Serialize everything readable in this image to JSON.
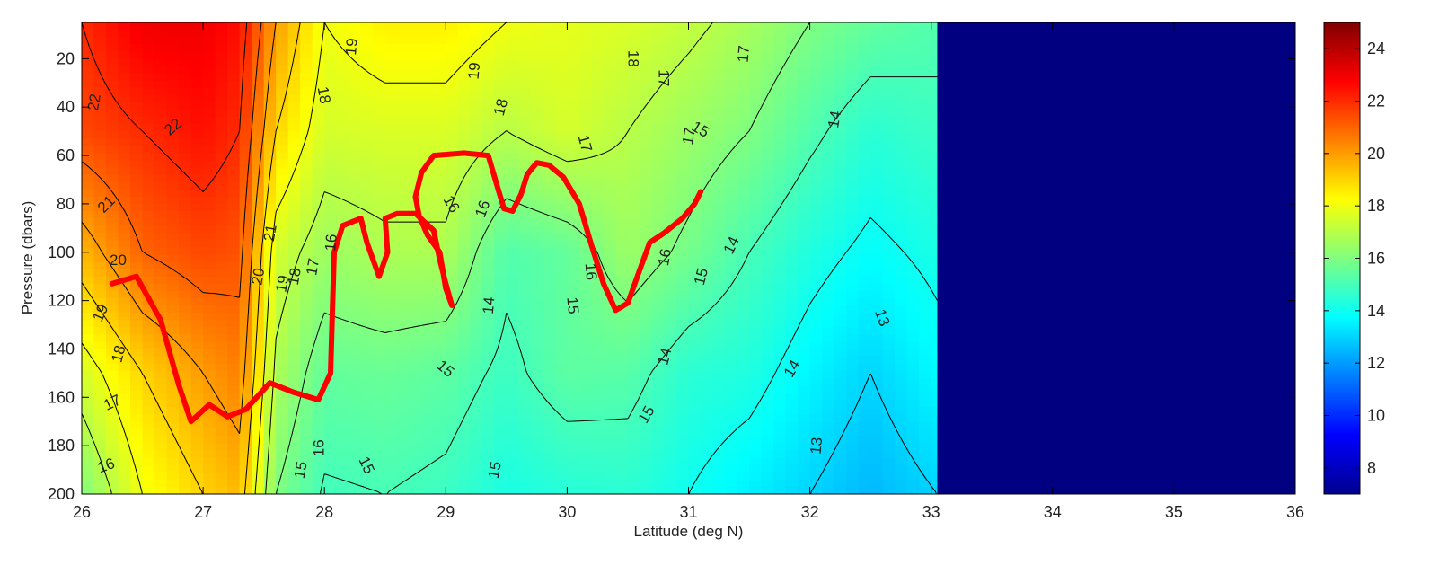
{
  "chart_data": {
    "type": "heatmap",
    "xlabel": "Latitude (deg N)",
    "ylabel": "Pressure (dbars)",
    "xlim": [
      26,
      36
    ],
    "ylim": [
      200,
      5
    ],
    "y_reversed": true,
    "xticks": [
      26,
      27,
      28,
      29,
      30,
      31,
      32,
      33,
      34,
      35,
      36
    ],
    "yticks": [
      20,
      40,
      60,
      80,
      100,
      120,
      140,
      160,
      180,
      200
    ],
    "colorbar": {
      "colormap": "jet",
      "clim": [
        7,
        25
      ],
      "ticks": [
        8,
        10,
        12,
        14,
        16,
        18,
        20,
        22,
        24
      ]
    },
    "data_extent_latitude": [
      26,
      33.05
    ],
    "no_data_color": "#000080",
    "temperature_field": {
      "latitudes": [
        26.0,
        26.5,
        27.0,
        27.3,
        27.6,
        28.0,
        28.5,
        29.0,
        29.5,
        30.0,
        30.5,
        31.0,
        31.5,
        32.0,
        32.5,
        33.05
      ],
      "pressures": [
        5,
        50,
        100,
        150,
        200
      ],
      "values": [
        [
          22.0,
          23.0,
          23.0,
          22.5,
          20.0,
          18.0,
          18.5,
          18.5,
          18.0,
          17.8,
          17.6,
          17.2,
          16.7,
          16.0,
          15.5,
          15.2
        ],
        [
          21.5,
          22.0,
          22.5,
          22.0,
          19.0,
          17.5,
          17.6,
          17.6,
          17.0,
          17.5,
          17.0,
          16.5,
          16.0,
          15.2,
          14.5,
          14.8
        ],
        [
          19.5,
          21.0,
          21.5,
          21.3,
          17.5,
          16.5,
          16.8,
          16.8,
          15.2,
          15.5,
          16.5,
          15.8,
          15.0,
          14.3,
          13.8,
          14.2
        ],
        [
          17.5,
          19.0,
          20.0,
          20.5,
          16.8,
          15.5,
          15.6,
          15.4,
          14.8,
          15.4,
          15.3,
          14.5,
          14.3,
          13.6,
          13.0,
          13.7
        ],
        [
          16.0,
          18.0,
          19.0,
          19.5,
          16.0,
          14.9,
          15.0,
          14.8,
          14.2,
          14.4,
          14.5,
          14.0,
          13.5,
          13.0,
          12.5,
          13.0
        ]
      ]
    },
    "contour_levels": [
      13,
      14,
      15,
      16,
      17,
      18,
      19,
      20,
      21,
      22
    ],
    "contour_label_values": [
      "22",
      "22",
      "21",
      "20",
      "19",
      "18",
      "17",
      "16",
      "21",
      "20",
      "19",
      "18",
      "17",
      "16",
      "15",
      "18",
      "19",
      "19",
      "18",
      "18",
      "17",
      "17",
      "17",
      "16",
      "17",
      "16",
      "16",
      "16",
      "15",
      "15",
      "15",
      "14",
      "14",
      "14",
      "13",
      "13",
      "15",
      "16",
      "15",
      "14",
      "15",
      "15",
      "14"
    ],
    "red_track": {
      "color": "#ff0000",
      "lat": [
        26.25,
        26.45,
        26.65,
        26.8,
        26.9,
        27.05,
        27.2,
        27.35,
        27.55,
        27.75,
        27.95,
        28.05,
        28.08,
        28.15,
        28.3,
        28.35,
        28.45,
        28.52,
        28.5,
        28.6,
        28.75,
        28.9,
        28.95,
        29.0,
        29.05,
        29.0,
        28.95,
        28.85,
        28.78,
        28.75,
        28.8,
        28.9,
        29.15,
        29.35,
        29.42,
        29.48,
        29.55,
        29.62,
        29.67,
        29.7,
        29.75,
        29.85,
        29.97,
        30.1,
        30.2,
        30.3,
        30.4,
        30.5,
        30.6,
        30.68,
        30.8,
        30.95,
        31.05,
        31.1
      ],
      "pressure": [
        113,
        110,
        128,
        155,
        170,
        163,
        168,
        165,
        154,
        158,
        161,
        150,
        100,
        89,
        86,
        96,
        110,
        100,
        86,
        84,
        84,
        91,
        103,
        113,
        122,
        115,
        100,
        93,
        85,
        77,
        67,
        60,
        59,
        60,
        72,
        82,
        83,
        76,
        68,
        66,
        63,
        64,
        69,
        80,
        97,
        113,
        124,
        121,
        107,
        96,
        92,
        86,
        80,
        75
      ]
    }
  }
}
